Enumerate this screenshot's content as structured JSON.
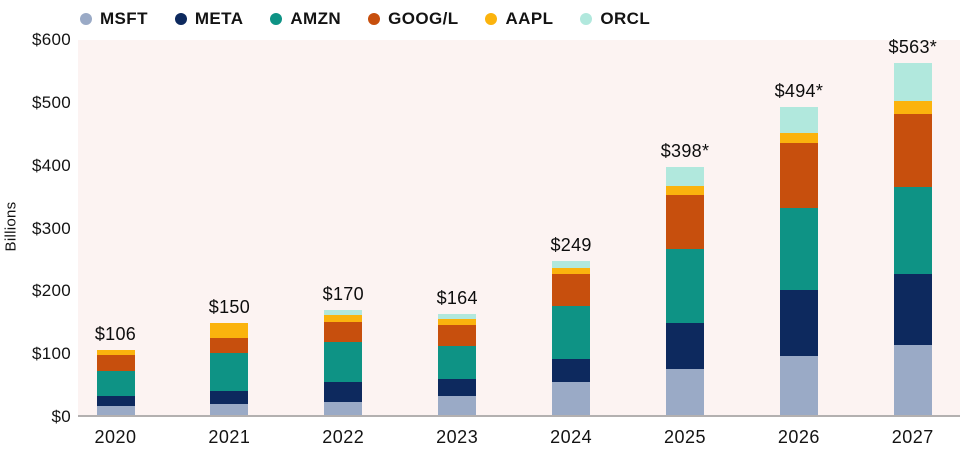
{
  "y_axis": {
    "title": "Billions",
    "ticks": [
      "$0",
      "$100",
      "$200",
      "$300",
      "$400",
      "$500",
      "$600"
    ]
  },
  "legend": [
    {
      "label": "MSFT",
      "color": "#9aaac6"
    },
    {
      "label": "META",
      "color": "#0d295e"
    },
    {
      "label": "AMZN",
      "color": "#0e9385"
    },
    {
      "label": "GOOG/L",
      "color": "#c74f0d"
    },
    {
      "label": "AAPL",
      "color": "#fbb30d"
    },
    {
      "label": "ORCL",
      "color": "#b1e8dd"
    }
  ],
  "chart_data": {
    "type": "bar",
    "stacked": true,
    "title": "",
    "xlabel": "",
    "ylabel": "Billions",
    "ylim": [
      0,
      600
    ],
    "grid": false,
    "legend_position": "top-left",
    "plot_background": "#fcf3f2",
    "categories": [
      "2020",
      "2021",
      "2022",
      "2023",
      "2024",
      "2025",
      "2026",
      "2027"
    ],
    "totals_labels": [
      "$106",
      "$150",
      "$170",
      "$164",
      "$249",
      "$398*",
      "$494*",
      "$563*"
    ],
    "series": [
      {
        "name": "MSFT",
        "color": "#9aaac6",
        "values": [
          17,
          21,
          24,
          34,
          55,
          77,
          97,
          115
        ]
      },
      {
        "name": "META",
        "color": "#0d295e",
        "values": [
          16,
          20,
          32,
          27,
          38,
          72,
          105,
          113
        ]
      },
      {
        "name": "AMZN",
        "color": "#0e9385",
        "values": [
          40,
          61,
          63,
          52,
          83,
          118,
          131,
          138
        ]
      },
      {
        "name": "GOOG/L",
        "color": "#c74f0d",
        "values": [
          26,
          24,
          32,
          34,
          52,
          87,
          103,
          117
        ]
      },
      {
        "name": "AAPL",
        "color": "#fbb30d",
        "values": [
          7,
          24,
          12,
          9,
          9,
          14,
          16,
          20
        ]
      },
      {
        "name": "ORCL",
        "color": "#b1e8dd",
        "values": [
          0,
          0,
          7,
          8,
          12,
          30,
          42,
          60
        ]
      }
    ]
  }
}
